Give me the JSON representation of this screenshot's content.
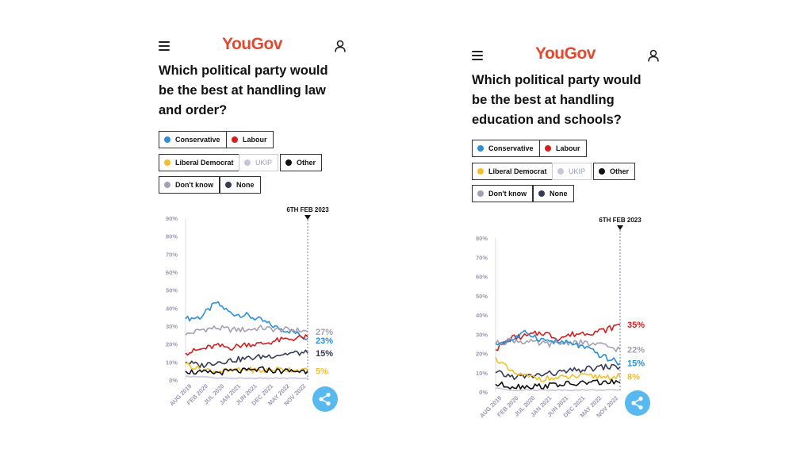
{
  "brand": "YouGov",
  "colors": {
    "conservative": "#2a8fd8",
    "labour": "#d31f1f",
    "libdem": "#f5be2a",
    "ukip": "#c9c6dc",
    "other": "#111111",
    "dont_know": "#a3a0b4",
    "none": "#363a55",
    "share": "#57b9f0",
    "logo": "#e2492f"
  },
  "icons": {
    "menu": "hamburger-icon",
    "user": "user-icon",
    "share": "share-icon"
  },
  "legend": {
    "conservative": "Conservative",
    "labour": "Labour",
    "libdem": "Liberal Democrat",
    "ukip": "UKIP",
    "other": "Other",
    "dont_know": "Don't know",
    "none": "None"
  },
  "panels": [
    {
      "question_lines": [
        "Which political party would",
        "be the best at handling law",
        "and order?"
      ],
      "marker_label": "6TH FEB 2023",
      "end_labels": {
        "dont_know": "27%",
        "conservative": "23%",
        "none": "15%",
        "libdem": "5%"
      },
      "chart_data": {
        "type": "line",
        "x_ticks": [
          "AUG 2019",
          "FEB 2020",
          "JUL 2020",
          "JAN 2021",
          "JUN 2021",
          "DEC 2021",
          "MAY 2022",
          "NOV 2022"
        ],
        "y_ticks": [
          "0%",
          "10%",
          "20%",
          "30%",
          "40%",
          "50%",
          "60%",
          "70%",
          "80%",
          "90%"
        ],
        "ylim": [
          0,
          90
        ],
        "x": [
          0,
          1,
          2,
          3,
          4,
          5,
          6,
          7,
          8
        ],
        "series": [
          {
            "key": "conservative",
            "values": [
              34,
              35,
              43,
              37,
              36,
              33,
              29,
              27,
              23
            ]
          },
          {
            "key": "dont_know",
            "values": [
              25,
              28,
              29,
              28,
              28,
              29,
              28,
              28,
              27
            ]
          },
          {
            "key": "labour",
            "values": [
              15,
              17,
              19,
              18,
              20,
              20,
              22,
              23,
              24
            ]
          },
          {
            "key": "none",
            "values": [
              10,
              8,
              10,
              11,
              12,
              13,
              14,
              15,
              15
            ]
          },
          {
            "key": "libdem",
            "values": [
              9,
              6,
              5,
              5,
              6,
              5,
              6,
              6,
              5
            ]
          },
          {
            "key": "other",
            "values": [
              5,
              4,
              4,
              5,
              5,
              6,
              5,
              5,
              5
            ]
          },
          {
            "key": "ukip",
            "values": [
              2,
              2,
              1,
              1,
              1,
              1,
              1,
              1,
              1
            ]
          }
        ]
      }
    },
    {
      "question_lines": [
        "Which political party would",
        "be the best at handling",
        "education and schools?"
      ],
      "marker_label": "6TH FEB 2023",
      "end_labels": {
        "labour": "35%",
        "dont_know": "22%",
        "conservative": "15%",
        "libdem": "8%"
      },
      "chart_data": {
        "type": "line",
        "x_ticks": [
          "AUG 2019",
          "FEB 2020",
          "JUL 2020",
          "JAN 2021",
          "JUN 2021",
          "DEC 2021",
          "MAY 2022",
          "NOV 2022"
        ],
        "y_ticks": [
          "0%",
          "10%",
          "20%",
          "30%",
          "40%",
          "50%",
          "60%",
          "70%",
          "80%"
        ],
        "ylim": [
          0,
          80
        ],
        "x": [
          0,
          1,
          2,
          3,
          4,
          5,
          6,
          7,
          8
        ],
        "series": [
          {
            "key": "labour",
            "values": [
              22,
              28,
              29,
              31,
              28,
              30,
              31,
              32,
              35
            ]
          },
          {
            "key": "dont_know",
            "values": [
              25,
              27,
              26,
              25,
              25,
              26,
              25,
              24,
              22
            ]
          },
          {
            "key": "conservative",
            "values": [
              25,
              27,
              31,
              27,
              26,
              25,
              22,
              18,
              15
            ]
          },
          {
            "key": "none",
            "values": [
              10,
              8,
              8,
              9,
              10,
              11,
              12,
              13,
              13
            ]
          },
          {
            "key": "libdem",
            "values": [
              18,
              10,
              8,
              7,
              7,
              8,
              8,
              8,
              8
            ]
          },
          {
            "key": "other",
            "values": [
              4,
              3,
              3,
              3,
              4,
              4,
              5,
              5,
              5
            ]
          },
          {
            "key": "ukip",
            "values": [
              2,
              1,
              1,
              1,
              1,
              1,
              1,
              1,
              1
            ]
          }
        ]
      }
    }
  ]
}
